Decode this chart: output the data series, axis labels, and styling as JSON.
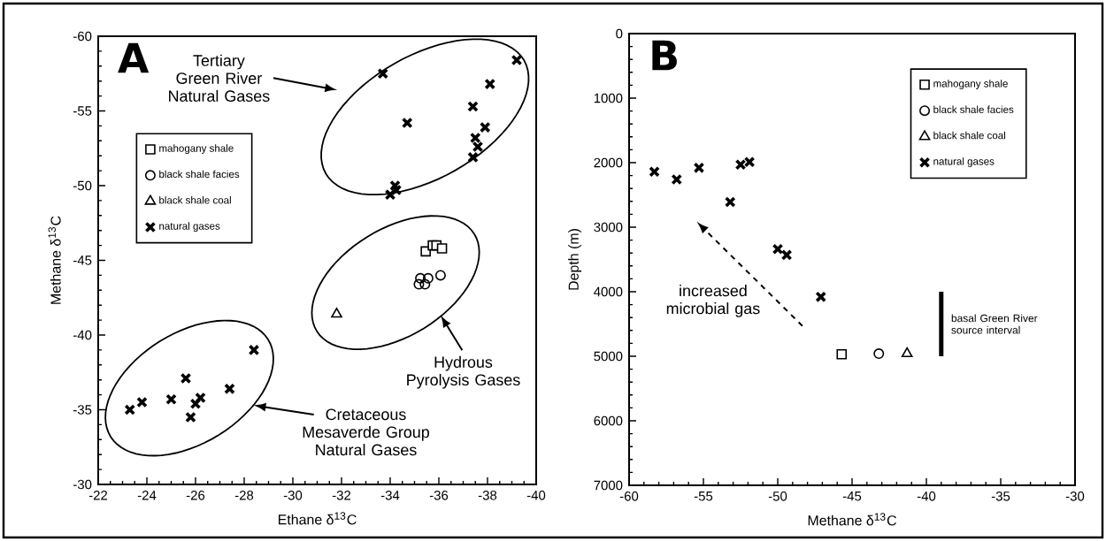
{
  "chart_data": [
    {
      "type": "scatter",
      "title": "A",
      "xlabel": "Ethane δ$^{13}$C",
      "ylabel": "Methane δ$^{13}$C",
      "xlim": [
        -22,
        -40
      ],
      "ylim": [
        -30,
        -60
      ],
      "xticks": [
        -22,
        -24,
        -26,
        -28,
        -30,
        -32,
        -34,
        -36,
        -38,
        -40
      ],
      "yticks": [
        -30,
        -35,
        -40,
        -45,
        -50,
        -55,
        -60
      ],
      "legend": "top left",
      "series": [
        {
          "name": "mahogany shale",
          "color": "#000000",
          "marker": "square",
          "x": [
            -35.46,
            -35.75,
            -35.9,
            -36.13
          ],
          "values": [
            -45.6,
            -46.0,
            -46.0,
            -45.8
          ]
        },
        {
          "name": "black shale facies",
          "color": "#000000",
          "marker": "circle",
          "x": [
            -35.18,
            -35.24,
            -35.43,
            -35.56,
            -36.07
          ],
          "values": [
            -43.4,
            -43.8,
            -43.4,
            -43.8,
            -44.0
          ]
        },
        {
          "name": "black shale coal",
          "color": "#000000",
          "marker": "triangle",
          "x": [
            -31.8
          ],
          "values": [
            -41.4
          ]
        },
        {
          "name": "natural gases",
          "color": "#000000",
          "marker": "cross",
          "x": [
            -33.7,
            -34.7,
            -39.2,
            -38.1,
            -37.4,
            -37.9,
            -37.5,
            -37.6,
            -37.4,
            -34.2,
            -34.0,
            -34.25,
            -23.3,
            -23.8,
            -25.0,
            -25.6,
            -25.8,
            -26.0,
            -26.2,
            -27.4,
            -28.4
          ],
          "values": [
            -57.5,
            -54.2,
            -58.4,
            -56.8,
            -55.3,
            -53.9,
            -53.2,
            -52.6,
            -51.9,
            -50.0,
            -49.4,
            -49.7,
            -35.0,
            -35.5,
            -35.7,
            -37.1,
            -34.5,
            -35.4,
            -35.8,
            -36.4,
            -39.0
          ]
        }
      ],
      "annotations": [
        "Tertiary Green River Natural Gases",
        "Hydrous Pyrolysis Gases",
        "Cretaceous Mesaverde Group Natural Gases"
      ]
    },
    {
      "type": "scatter",
      "title": "B",
      "xlabel": "Methane δ$^{13}$C",
      "ylabel": "Depth (m)",
      "xlim": [
        -60,
        -30
      ],
      "ylim": [
        7000,
        0
      ],
      "xticks": [
        -60,
        -55,
        -50,
        -45,
        -40,
        -35,
        -30
      ],
      "yticks": [
        0,
        1000,
        2000,
        3000,
        4000,
        5000,
        6000,
        7000
      ],
      "legend": "top right",
      "series": [
        {
          "name": "mahogany shale",
          "color": "#000000",
          "marker": "square",
          "x": [
            -45.7
          ],
          "values": [
            4970
          ]
        },
        {
          "name": "black shale facies",
          "color": "#000000",
          "marker": "circle",
          "x": [
            -43.2
          ],
          "values": [
            4960
          ]
        },
        {
          "name": "black shale coal",
          "color": "#000000",
          "marker": "triangle",
          "x": [
            -41.3
          ],
          "values": [
            4960
          ]
        },
        {
          "name": "natural gases",
          "color": "#000000",
          "marker": "cross",
          "x": [
            -58.3,
            -56.8,
            -55.3,
            -53.2,
            -52.5,
            -51.9,
            -50.0,
            -49.4,
            -47.1
          ],
          "values": [
            2140,
            2260,
            2080,
            2610,
            2030,
            1990,
            3340,
            3430,
            4080
          ]
        },
        {
          "type": "line",
          "color": "#000000",
          "marker": "none",
          "x": [
            -39,
            -39
          ],
          "values": [
            4000,
            5000
          ]
        }
      ],
      "annotations": [
        "increased microbial gas",
        {
          "text": "basal Green River source interval",
          "x": -39,
          "y": 4500
        }
      ]
    }
  ]
}
